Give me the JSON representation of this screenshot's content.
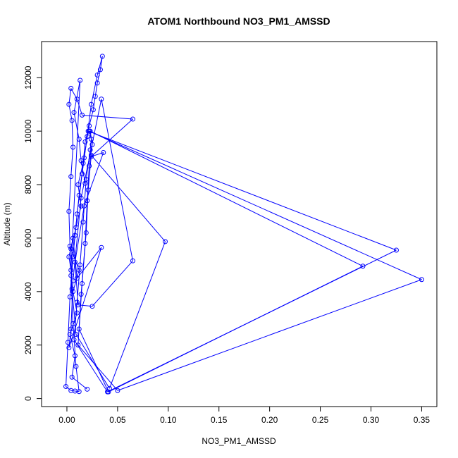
{
  "chart_data": {
    "type": "line",
    "title": "ATOM1 Northbound NO3_PM1_AMSSD",
    "xlabel": "NO3_PM1_AMSSD",
    "ylabel": "Altitude (m)",
    "xlim": [
      -0.025,
      0.365
    ],
    "ylim": [
      -300,
      13350
    ],
    "xticks": [
      0.0,
      0.05,
      0.1,
      0.15,
      0.2,
      0.25,
      0.3,
      0.35
    ],
    "xtick_labels": [
      "0.00",
      "0.05",
      "0.10",
      "0.15",
      "0.20",
      "0.25",
      "0.30",
      "0.35"
    ],
    "yticks": [
      0,
      2000,
      4000,
      6000,
      8000,
      10000,
      12000
    ],
    "ytick_labels": [
      "0",
      "2000",
      "4000",
      "6000",
      "8000",
      "10000",
      "12000"
    ],
    "grid": false,
    "series": [
      {
        "color": "#0000ff",
        "markers": "open-circle",
        "points": [
          [
            0.02,
            350
          ],
          [
            0.005,
            800
          ],
          [
            0.008,
            1600
          ],
          [
            0.003,
            2400
          ],
          [
            0.01,
            3200
          ],
          [
            0.006,
            4000
          ],
          [
            0.012,
            4800
          ],
          [
            0.004,
            5600
          ],
          [
            0.009,
            6400
          ],
          [
            0.014,
            7200
          ],
          [
            0.011,
            8000
          ],
          [
            0.016,
            8800
          ],
          [
            0.018,
            9600
          ],
          [
            0.022,
            10200
          ],
          [
            0.026,
            10800
          ],
          [
            0.028,
            11300
          ],
          [
            0.03,
            11800
          ],
          [
            0.033,
            12300
          ],
          [
            0.035,
            12800
          ],
          [
            0.03,
            12100
          ],
          [
            0.024,
            11000
          ],
          [
            0.02,
            9800
          ],
          [
            0.015,
            8400
          ],
          [
            0.01,
            6900
          ],
          [
            0.006,
            5300
          ],
          [
            0.003,
            3800
          ],
          [
            0.001,
            2100
          ],
          [
            -0.001,
            450
          ],
          [
            0.004,
            300
          ],
          [
            0.008,
            280
          ],
          [
            0.012,
            260
          ],
          [
            0.009,
            1200
          ],
          [
            0.006,
            2800
          ],
          [
            0.004,
            4600
          ],
          [
            0.008,
            6100
          ],
          [
            0.012,
            7600
          ],
          [
            0.017,
            9000
          ],
          [
            0.021,
            10000
          ],
          [
            0.325,
            5550
          ],
          [
            0.04,
            250
          ],
          [
            0.007,
            2200
          ],
          [
            0.01,
            3600
          ],
          [
            0.013,
            5000
          ],
          [
            0.016,
            6600
          ],
          [
            0.019,
            8200
          ],
          [
            0.023,
            9300
          ],
          [
            0.024,
            9700
          ],
          [
            0.022,
            10000
          ],
          [
            0.35,
            4450
          ],
          [
            0.05,
            300
          ],
          [
            0.011,
            2000
          ],
          [
            0.014,
            3900
          ],
          [
            0.018,
            5800
          ],
          [
            0.02,
            7400
          ],
          [
            0.022,
            8700
          ],
          [
            0.025,
            9500
          ],
          [
            0.023,
            10000
          ],
          [
            0.292,
            4950
          ],
          [
            0.041,
            250
          ],
          [
            0.012,
            2600
          ],
          [
            0.015,
            4300
          ],
          [
            0.019,
            6200
          ],
          [
            0.021,
            7800
          ],
          [
            0.024,
            9100
          ],
          [
            0.097,
            5870
          ],
          [
            0.042,
            380
          ],
          [
            0.009,
            2400
          ],
          [
            0.005,
            4100
          ],
          [
            0.003,
            5700
          ],
          [
            0.002,
            7000
          ],
          [
            0.004,
            8300
          ],
          [
            0.006,
            9400
          ],
          [
            0.005,
            10400
          ],
          [
            0.002,
            11000
          ],
          [
            0.004,
            11600
          ],
          [
            0.01,
            11200
          ],
          [
            0.015,
            10600
          ],
          [
            0.065,
            10450
          ],
          [
            0.024,
            9050
          ],
          [
            0.036,
            9200
          ],
          [
            0.017,
            7200
          ],
          [
            0.008,
            5100
          ],
          [
            0.011,
            3500
          ],
          [
            0.025,
            3450
          ],
          [
            0.065,
            5150
          ],
          [
            0.034,
            11200
          ],
          [
            0.014,
            7500
          ],
          [
            0.006,
            4400
          ],
          [
            0.004,
            2600
          ],
          [
            0.002,
            1900
          ],
          [
            0.034,
            5650
          ],
          [
            0.01,
            4500
          ],
          [
            0.006,
            6000
          ],
          [
            0.002,
            5300
          ],
          [
            0.004,
            4800
          ],
          [
            0.013,
            11900
          ],
          [
            0.007,
            10700
          ],
          [
            0.012,
            9700
          ],
          [
            0.014,
            8900
          ],
          [
            0.018,
            8050
          ]
        ]
      }
    ]
  }
}
